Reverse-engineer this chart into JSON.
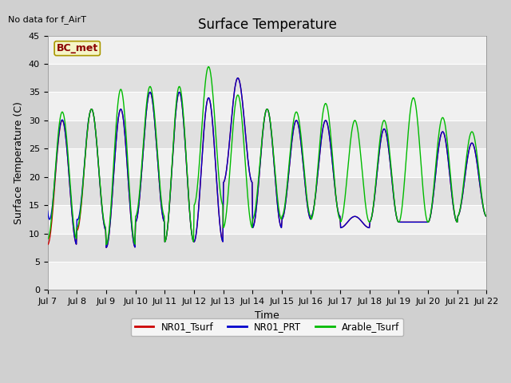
{
  "title": "Surface Temperature",
  "top_left_text": "No data for f_AirT",
  "xlabel": "Time",
  "ylabel": "Surface Temperature (C)",
  "ylim": [
    0,
    45
  ],
  "yticks": [
    0,
    5,
    10,
    15,
    20,
    25,
    30,
    35,
    40,
    45
  ],
  "annotation_box": "BC_met",
  "legend_entries": [
    "NR01_Tsurf",
    "NR01_PRT",
    "Arable_Tsurf"
  ],
  "line_colors": {
    "NR01_Tsurf": "#cc0000",
    "NR01_PRT": "#0000cc",
    "Arable_Tsurf": "#00bb00"
  },
  "fig_bg": "#d0d0d0",
  "plot_bg_light": "#f0f0f0",
  "plot_bg_dark": "#e0e0e0",
  "grid_color": "#ffffff",
  "title_fontsize": 12,
  "label_fontsize": 9,
  "tick_fontsize": 8
}
